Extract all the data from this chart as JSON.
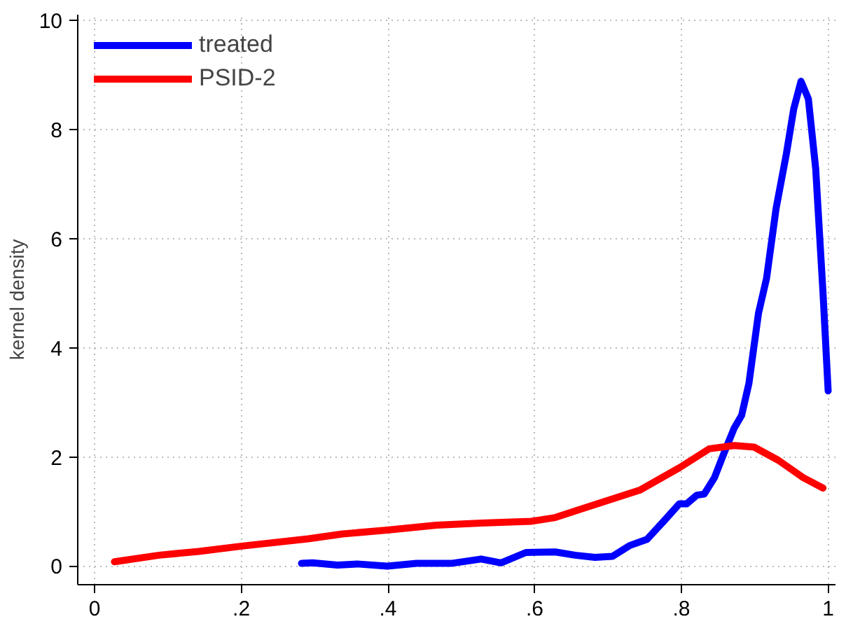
{
  "chart_data": {
    "type": "line",
    "ylabel": "kernel density",
    "xlim": [
      -0.023,
      1.01
    ],
    "ylim": [
      -0.34,
      10.1
    ],
    "xticks": [
      {
        "value": 0,
        "label": "0"
      },
      {
        "value": 0.2,
        "label": ".2"
      },
      {
        "value": 0.4,
        "label": ".4"
      },
      {
        "value": 0.6,
        "label": ".6"
      },
      {
        "value": 0.8,
        "label": ".8"
      },
      {
        "value": 1,
        "label": "1"
      }
    ],
    "yticks": [
      0,
      2,
      4,
      6,
      8,
      10
    ],
    "grid": true,
    "legend": "top left",
    "line_style": "solid",
    "series": [
      {
        "name": "treated",
        "color": "#0000ff",
        "x": [
          0.282,
          0.297,
          0.331,
          0.358,
          0.399,
          0.439,
          0.486,
          0.527,
          0.554,
          0.588,
          0.628,
          0.655,
          0.682,
          0.706,
          0.73,
          0.753,
          0.777,
          0.797,
          0.807,
          0.821,
          0.831,
          0.845,
          0.858,
          0.872,
          0.882,
          0.892,
          0.905,
          0.916,
          0.929,
          0.943,
          0.953,
          0.963,
          0.973,
          0.983,
          0.993,
          1.0
        ],
        "values": [
          0.05,
          0.06,
          0.02,
          0.04,
          0.0,
          0.05,
          0.05,
          0.13,
          0.06,
          0.25,
          0.26,
          0.2,
          0.16,
          0.18,
          0.38,
          0.49,
          0.84,
          1.14,
          1.14,
          1.3,
          1.32,
          1.62,
          2.07,
          2.53,
          2.76,
          3.35,
          4.63,
          5.27,
          6.55,
          7.55,
          8.37,
          8.88,
          8.56,
          7.28,
          5.0,
          3.21
        ]
      },
      {
        "name": "PSID-2",
        "color": "#ff0000",
        "x": [
          0.027,
          0.088,
          0.142,
          0.203,
          0.291,
          0.338,
          0.399,
          0.466,
          0.527,
          0.595,
          0.628,
          0.669,
          0.743,
          0.797,
          0.838,
          0.872,
          0.899,
          0.932,
          0.966,
          0.993
        ],
        "values": [
          0.08,
          0.2,
          0.27,
          0.37,
          0.5,
          0.59,
          0.66,
          0.75,
          0.79,
          0.82,
          0.89,
          1.07,
          1.39,
          1.8,
          2.15,
          2.21,
          2.18,
          1.94,
          1.62,
          1.43
        ]
      }
    ]
  }
}
